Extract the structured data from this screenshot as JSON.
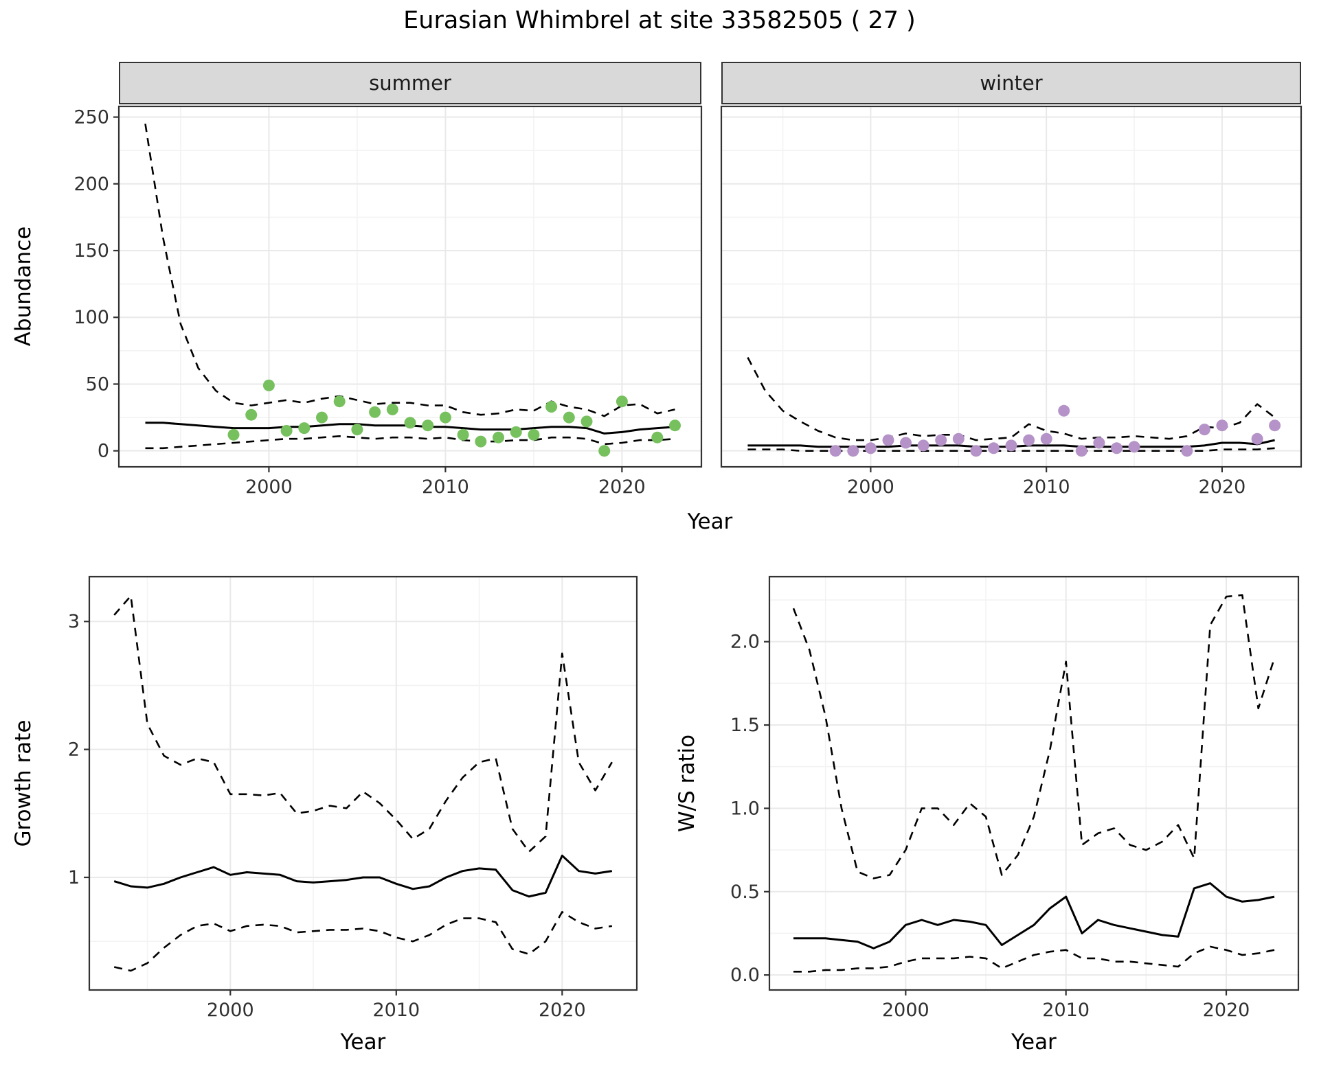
{
  "title": "Eurasian Whimbrel at site 33582505 ( 27 )",
  "facets": [
    {
      "label": "summer"
    },
    {
      "label": "winter"
    }
  ],
  "labels": {
    "year": "Year",
    "abundance": "Abundance",
    "growth_rate": "Growth rate",
    "ws_ratio": "W/S ratio"
  },
  "colors": {
    "summer_points": "#76c05e",
    "winter_points": "#b593c8",
    "line": "#000000",
    "strip_background": "#d9d9d9"
  },
  "chart_data": [
    {
      "id": "summer",
      "type": "line+scatter",
      "facet": "summer",
      "xlabel": "Year",
      "ylabel": "Abundance",
      "xlim": [
        1991.5,
        2024.5
      ],
      "ylim": [
        -12,
        258
      ],
      "xticks": [
        2000,
        2010,
        2020
      ],
      "xtick_labels": [
        "2000",
        "2010",
        "2020"
      ],
      "xminor": [
        1995,
        2005,
        2015
      ],
      "yticks": [
        0,
        50,
        100,
        150,
        200,
        250
      ],
      "ytick_labels": [
        "0",
        "50",
        "100",
        "150",
        "200",
        "250"
      ],
      "yminor": [
        25,
        75,
        125,
        175,
        225
      ],
      "x": [
        1993,
        1994,
        1995,
        1996,
        1997,
        1998,
        1999,
        2000,
        2001,
        2002,
        2003,
        2004,
        2005,
        2006,
        2007,
        2008,
        2009,
        2010,
        2011,
        2012,
        2013,
        2014,
        2015,
        2016,
        2017,
        2018,
        2019,
        2020,
        2021,
        2022,
        2023
      ],
      "series": [
        {
          "name": "upper_ci",
          "style": "dashed",
          "values": [
            245,
            160,
            95,
            62,
            45,
            36,
            34,
            36,
            38,
            36,
            39,
            41,
            38,
            35,
            36,
            36,
            34,
            34,
            29,
            27,
            28,
            31,
            30,
            37,
            33,
            31,
            26,
            34,
            35,
            28,
            31
          ]
        },
        {
          "name": "mean",
          "style": "solid",
          "values": [
            21,
            21,
            20,
            19,
            18,
            17,
            17,
            17,
            18,
            18,
            19,
            20,
            20,
            19,
            19,
            19,
            18,
            18,
            17,
            16,
            16,
            16,
            17,
            18,
            18,
            17,
            13,
            14,
            16,
            17,
            18
          ]
        },
        {
          "name": "lower_ci",
          "style": "dashed",
          "values": [
            2,
            2,
            3,
            4,
            5,
            6,
            7,
            8,
            9,
            9,
            10,
            11,
            10,
            9,
            10,
            10,
            9,
            10,
            8,
            7,
            7,
            8,
            8,
            10,
            10,
            9,
            5,
            6,
            8,
            8,
            9
          ]
        }
      ],
      "points": {
        "color": "#76c05e",
        "x": [
          1998,
          1999,
          2000,
          2001,
          2002,
          2003,
          2004,
          2005,
          2006,
          2007,
          2008,
          2009,
          2010,
          2011,
          2012,
          2013,
          2014,
          2015,
          2016,
          2017,
          2018,
          2019,
          2020,
          2022,
          2023
        ],
        "y": [
          12,
          27,
          49,
          15,
          17,
          25,
          37,
          16,
          29,
          31,
          21,
          19,
          25,
          12,
          7,
          10,
          14,
          12,
          33,
          25,
          22,
          0,
          37,
          10,
          19
        ]
      }
    },
    {
      "id": "winter",
      "type": "line+scatter",
      "facet": "winter",
      "xlabel": "Year",
      "ylabel": "Abundance",
      "xlim": [
        1991.5,
        2024.5
      ],
      "ylim": [
        -12,
        258
      ],
      "xticks": [
        2000,
        2010,
        2020
      ],
      "xtick_labels": [
        "2000",
        "2010",
        "2020"
      ],
      "xminor": [
        1995,
        2005,
        2015
      ],
      "yticks": [
        0,
        50,
        100,
        150,
        200,
        250
      ],
      "ytick_labels": [
        "0",
        "50",
        "100",
        "150",
        "200",
        "250"
      ],
      "yminor": [
        25,
        75,
        125,
        175,
        225
      ],
      "x": [
        1993,
        1994,
        1995,
        1996,
        1997,
        1998,
        1999,
        2000,
        2001,
        2002,
        2003,
        2004,
        2005,
        2006,
        2007,
        2008,
        2009,
        2010,
        2011,
        2012,
        2013,
        2014,
        2015,
        2016,
        2017,
        2018,
        2019,
        2020,
        2021,
        2022,
        2023
      ],
      "series": [
        {
          "name": "upper_ci",
          "style": "dashed",
          "values": [
            70,
            45,
            30,
            22,
            15,
            10,
            8,
            8,
            10,
            13,
            11,
            12,
            12,
            8,
            9,
            10,
            20,
            15,
            13,
            9,
            10,
            10,
            11,
            10,
            9,
            11,
            18,
            17,
            21,
            35,
            25
          ]
        },
        {
          "name": "mean",
          "style": "solid",
          "values": [
            4,
            4,
            4,
            4,
            3,
            3,
            3,
            3,
            3,
            4,
            4,
            4,
            4,
            3,
            3,
            3,
            4,
            4,
            4,
            3,
            3,
            3,
            3,
            3,
            3,
            3,
            4,
            6,
            6,
            5,
            8
          ]
        },
        {
          "name": "lower_ci",
          "style": "dashed",
          "values": [
            1,
            1,
            1,
            0,
            0,
            0,
            0,
            0,
            0,
            0,
            0,
            0,
            0,
            0,
            0,
            0,
            0,
            0,
            0,
            0,
            0,
            0,
            0,
            0,
            0,
            0,
            0,
            1,
            1,
            1,
            2
          ]
        }
      ],
      "points": {
        "color": "#b593c8",
        "x": [
          1998,
          1999,
          2000,
          2001,
          2002,
          2003,
          2004,
          2005,
          2006,
          2007,
          2008,
          2009,
          2010,
          2011,
          2012,
          2013,
          2014,
          2015,
          2018,
          2019,
          2020,
          2022,
          2023
        ],
        "y": [
          0,
          0,
          2,
          8,
          6,
          4,
          8,
          9,
          0,
          2,
          4,
          8,
          9,
          30,
          0,
          6,
          2,
          3,
          0,
          16,
          19,
          9,
          19
        ]
      }
    },
    {
      "id": "growth",
      "type": "line",
      "xlabel": "Year",
      "ylabel": "Growth rate",
      "xlim": [
        1991.5,
        2024.5
      ],
      "ylim": [
        0.12,
        3.35
      ],
      "xticks": [
        2000,
        2010,
        2020
      ],
      "xtick_labels": [
        "2000",
        "2010",
        "2020"
      ],
      "xminor": [
        1995,
        2005,
        2015
      ],
      "yticks": [
        1,
        2,
        3
      ],
      "ytick_labels": [
        "1",
        "2",
        "3"
      ],
      "yminor": [
        0.5,
        1.5,
        2.5
      ],
      "x": [
        1993,
        1994,
        1995,
        1996,
        1997,
        1998,
        1999,
        2000,
        2001,
        2002,
        2003,
        2004,
        2005,
        2006,
        2007,
        2008,
        2009,
        2010,
        2011,
        2012,
        2013,
        2014,
        2015,
        2016,
        2017,
        2018,
        2019,
        2020,
        2021,
        2022,
        2023
      ],
      "series": [
        {
          "name": "upper_ci",
          "style": "dashed",
          "values": [
            3.05,
            3.2,
            2.2,
            1.95,
            1.88,
            1.93,
            1.9,
            1.65,
            1.65,
            1.64,
            1.66,
            1.5,
            1.52,
            1.56,
            1.54,
            1.67,
            1.58,
            1.45,
            1.3,
            1.38,
            1.6,
            1.78,
            1.9,
            1.93,
            1.38,
            1.2,
            1.32,
            2.75,
            1.9,
            1.68,
            1.9
          ]
        },
        {
          "name": "mean",
          "style": "solid",
          "values": [
            0.97,
            0.93,
            0.92,
            0.95,
            1.0,
            1.04,
            1.08,
            1.02,
            1.04,
            1.03,
            1.02,
            0.97,
            0.96,
            0.97,
            0.98,
            1.0,
            1.0,
            0.95,
            0.91,
            0.93,
            1.0,
            1.05,
            1.07,
            1.06,
            0.9,
            0.85,
            0.88,
            1.17,
            1.05,
            1.03,
            1.05
          ]
        },
        {
          "name": "lower_ci",
          "style": "dashed",
          "values": [
            0.3,
            0.27,
            0.33,
            0.45,
            0.55,
            0.62,
            0.64,
            0.58,
            0.62,
            0.63,
            0.62,
            0.57,
            0.58,
            0.59,
            0.59,
            0.6,
            0.58,
            0.53,
            0.5,
            0.55,
            0.63,
            0.68,
            0.68,
            0.65,
            0.44,
            0.4,
            0.5,
            0.73,
            0.65,
            0.6,
            0.62
          ]
        }
      ]
    },
    {
      "id": "ws",
      "type": "line",
      "xlabel": "Year",
      "ylabel": "W/S ratio",
      "xlim": [
        1991.5,
        2024.5
      ],
      "ylim": [
        -0.09,
        2.39
      ],
      "xticks": [
        2000,
        2010,
        2020
      ],
      "xtick_labels": [
        "2000",
        "2010",
        "2020"
      ],
      "xminor": [
        1995,
        2005,
        2015
      ],
      "yticks": [
        0.0,
        0.5,
        1.0,
        1.5,
        2.0
      ],
      "ytick_labels": [
        "0.0",
        "0.5",
        "1.0",
        "1.5",
        "2.0"
      ],
      "yminor": [
        0.25,
        0.75,
        1.25,
        1.75,
        2.25
      ],
      "x": [
        1993,
        1994,
        1995,
        1996,
        1997,
        1998,
        1999,
        2000,
        2001,
        2002,
        2003,
        2004,
        2005,
        2006,
        2007,
        2008,
        2009,
        2010,
        2011,
        2012,
        2013,
        2014,
        2015,
        2016,
        2017,
        2018,
        2019,
        2020,
        2021,
        2022,
        2023
      ],
      "series": [
        {
          "name": "upper_ci",
          "style": "dashed",
          "values": [
            2.2,
            1.95,
            1.55,
            1.0,
            0.62,
            0.58,
            0.6,
            0.75,
            1.0,
            1.0,
            0.9,
            1.03,
            0.95,
            0.6,
            0.72,
            0.95,
            1.35,
            1.88,
            0.78,
            0.85,
            0.88,
            0.78,
            0.75,
            0.8,
            0.9,
            0.7,
            2.1,
            2.27,
            2.28,
            1.6,
            1.9
          ]
        },
        {
          "name": "mean",
          "style": "solid",
          "values": [
            0.22,
            0.22,
            0.22,
            0.21,
            0.2,
            0.16,
            0.2,
            0.3,
            0.33,
            0.3,
            0.33,
            0.32,
            0.3,
            0.18,
            0.24,
            0.3,
            0.4,
            0.47,
            0.25,
            0.33,
            0.3,
            0.28,
            0.26,
            0.24,
            0.23,
            0.52,
            0.55,
            0.47,
            0.44,
            0.45,
            0.47
          ]
        },
        {
          "name": "lower_ci",
          "style": "dashed",
          "values": [
            0.02,
            0.02,
            0.03,
            0.03,
            0.04,
            0.04,
            0.05,
            0.08,
            0.1,
            0.1,
            0.1,
            0.11,
            0.1,
            0.04,
            0.08,
            0.12,
            0.14,
            0.15,
            0.1,
            0.1,
            0.08,
            0.08,
            0.07,
            0.06,
            0.05,
            0.13,
            0.17,
            0.15,
            0.12,
            0.13,
            0.15
          ]
        }
      ]
    }
  ]
}
